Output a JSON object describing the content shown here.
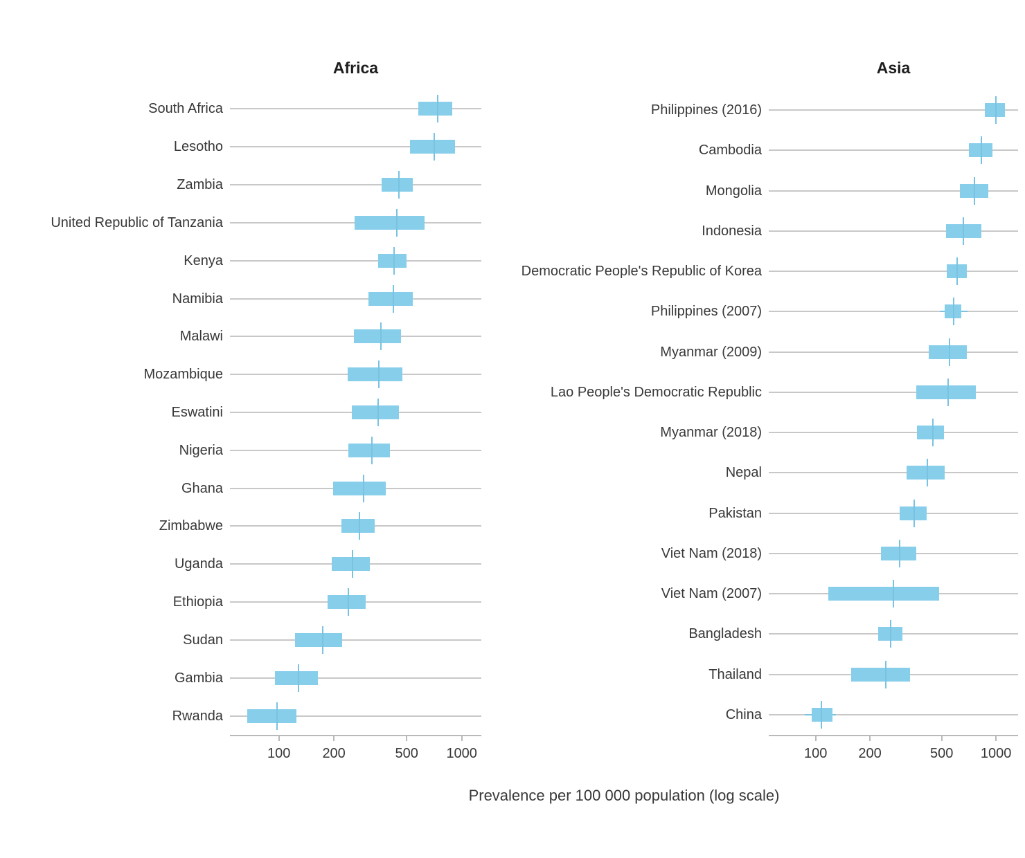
{
  "figure": {
    "xlabel": "Prevalence per 100 000 population (log scale)",
    "bar_color": "#87CEEB",
    "tick_color": "#79C3E1",
    "gridline_color": "#C8C8C8",
    "axis_color": "#B9B9B9",
    "text_color": "#383838"
  },
  "chart_data": [
    {
      "type": "bar",
      "title": "Africa",
      "orientation": "horizontal",
      "xscale": "log",
      "xlabel": "Prevalence per 100 000 population (log scale)",
      "xticks": [
        100,
        200,
        500,
        1000
      ],
      "xlim": [
        54,
        1280
      ],
      "grid": "horizontal",
      "categories": [
        "South Africa",
        "Lesotho",
        "Zambia",
        "United Republic of Tanzania",
        "Kenya",
        "Namibia",
        "Malawi",
        "Mozambique",
        "Eswatini",
        "Nigeria",
        "Ghana",
        "Zimbabwe",
        "Uganda",
        "Ethiopia",
        "Sudan",
        "Gambia",
        "Rwanda"
      ],
      "series": [
        {
          "name": "estimate",
          "values": [
            737,
            710,
            455,
            442,
            426,
            423,
            363,
            352,
            350,
            323,
            290,
            275,
            253,
            240,
            174,
            128,
            98
          ]
        },
        {
          "name": "ci_low",
          "values": [
            580,
            520,
            365,
            260,
            350,
            310,
            258,
            237,
            250,
            240,
            198,
            220,
            194,
            185,
            123,
            95,
            67
          ]
        },
        {
          "name": "ci_high",
          "values": [
            890,
            915,
            540,
            625,
            500,
            540,
            465,
            473,
            455,
            405,
            385,
            334,
            315,
            299,
            222,
            163,
            125
          ]
        }
      ],
      "whiskers": {}
    },
    {
      "type": "bar",
      "title": "Asia",
      "orientation": "horizontal",
      "xscale": "log",
      "xlabel": "Prevalence per 100 000 population (log scale)",
      "xticks": [
        100,
        200,
        500,
        1000
      ],
      "xlim": [
        55,
        1325
      ],
      "grid": "horizontal",
      "categories": [
        "Philippines (2016)",
        "Cambodia",
        "Mongolia",
        "Indonesia",
        "Democratic People's Republic of Korea",
        "Philippines (2007)",
        "Myanmar (2009)",
        "Lao People's Democratic Republic",
        "Myanmar (2018)",
        "Nepal",
        "Pakistan",
        "Viet Nam (2018)",
        "Viet Nam (2007)",
        "Bangladesh",
        "Thailand",
        "China"
      ],
      "series": [
        {
          "name": "estimate",
          "values": [
            1000,
            831,
            760,
            660,
            610,
            580,
            550,
            545,
            445,
            416,
            353,
            293,
            269,
            260,
            246,
            108
          ]
        },
        {
          "name": "ci_low",
          "values": [
            870,
            707,
            630,
            528,
            535,
            520,
            425,
            360,
            365,
            318,
            293,
            230,
            118,
            223,
            158,
            95
          ]
        },
        {
          "name": "ci_high",
          "values": [
            1120,
            954,
            905,
            830,
            690,
            643,
            690,
            775,
            515,
            520,
            414,
            360,
            485,
            304,
            335,
            124
          ]
        }
      ],
      "whiskers": {
        "Philippines (2007)": [
          490,
          697
        ],
        "China": [
          87,
          130
        ]
      }
    }
  ]
}
